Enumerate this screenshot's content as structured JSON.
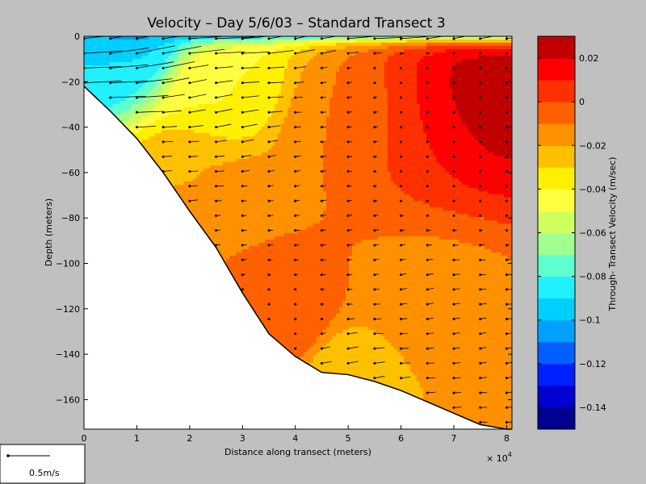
{
  "chart_data": {
    "type": "heatmap",
    "title": "Velocity – Day 5/6/03 – Standard Transect 3",
    "xlabel": "Distance along transect (meters)",
    "ylabel": "Depth (meters)",
    "x_multiplier_label": "× 10",
    "x_multiplier_exponent": "4",
    "xlim": [
      0,
      8.1
    ],
    "ylim": [
      -173,
      0
    ],
    "x_ticks": [
      "0",
      "1",
      "2",
      "3",
      "4",
      "5",
      "6",
      "7",
      "8"
    ],
    "y_ticks": [
      "0",
      "−20",
      "−40",
      "−60",
      "−80",
      "−100",
      "−120",
      "−140",
      "−160"
    ],
    "bottom_profile": {
      "x": [
        0,
        0.5,
        1,
        1.5,
        2,
        2.5,
        3,
        3.5,
        4,
        4.5,
        5,
        5.5,
        6,
        6.5,
        7,
        7.5,
        8,
        8.1
      ],
      "depth": [
        -22,
        -33,
        -45,
        -60,
        -77,
        -93,
        -113,
        -131,
        -141,
        -148,
        -149,
        -152,
        -156,
        -161,
        -166,
        -171,
        -173,
        -173
      ]
    },
    "velocity_field": {
      "description_levels": "m/sec",
      "sample_points": [
        {
          "x": 0.2,
          "depth": -5,
          "value": -0.09
        },
        {
          "x": 0.8,
          "depth": -3,
          "value": -0.09
        },
        {
          "x": 2.5,
          "depth": -25,
          "value": -0.04
        },
        {
          "x": 2.0,
          "depth": -60,
          "value": -0.02
        },
        {
          "x": 3.0,
          "depth": -80,
          "value": -0.01
        },
        {
          "x": 5.0,
          "depth": -40,
          "value": -0.01
        },
        {
          "x": 6.5,
          "depth": -40,
          "value": 0.01
        },
        {
          "x": 7.6,
          "depth": -30,
          "value": 0.025
        },
        {
          "x": 5.0,
          "depth": -100,
          "value": -0.01
        },
        {
          "x": 6.5,
          "depth": -120,
          "value": -0.015
        },
        {
          "x": 5.0,
          "depth": -145,
          "value": -0.025
        },
        {
          "x": 3.8,
          "depth": -125,
          "value": 0.0
        }
      ]
    },
    "colorbar": {
      "label": "Through- Transect Velocity (m/sec)",
      "range": [
        -0.15,
        0.03
      ],
      "tick_labels": [
        "0.02",
        "0",
        "−0.02",
        "−0.04",
        "−0.06",
        "−0.08",
        "−0.1",
        "−0.12",
        "−0.14"
      ],
      "tick_values": [
        0.02,
        0,
        -0.02,
        -0.04,
        -0.06,
        -0.08,
        -0.1,
        -0.12,
        -0.14
      ],
      "colors": [
        "#000090",
        "#0000d0",
        "#0020ff",
        "#0060ff",
        "#00a0ff",
        "#00d0ff",
        "#20f0ff",
        "#60ffd0",
        "#a0ff90",
        "#d0ff60",
        "#ffff40",
        "#fff000",
        "#ffc000",
        "#ff9000",
        "#ff6000",
        "#ff3000",
        "#ff0000",
        "#c00000"
      ]
    }
  },
  "scale_key": {
    "label": "0.5m/s"
  }
}
